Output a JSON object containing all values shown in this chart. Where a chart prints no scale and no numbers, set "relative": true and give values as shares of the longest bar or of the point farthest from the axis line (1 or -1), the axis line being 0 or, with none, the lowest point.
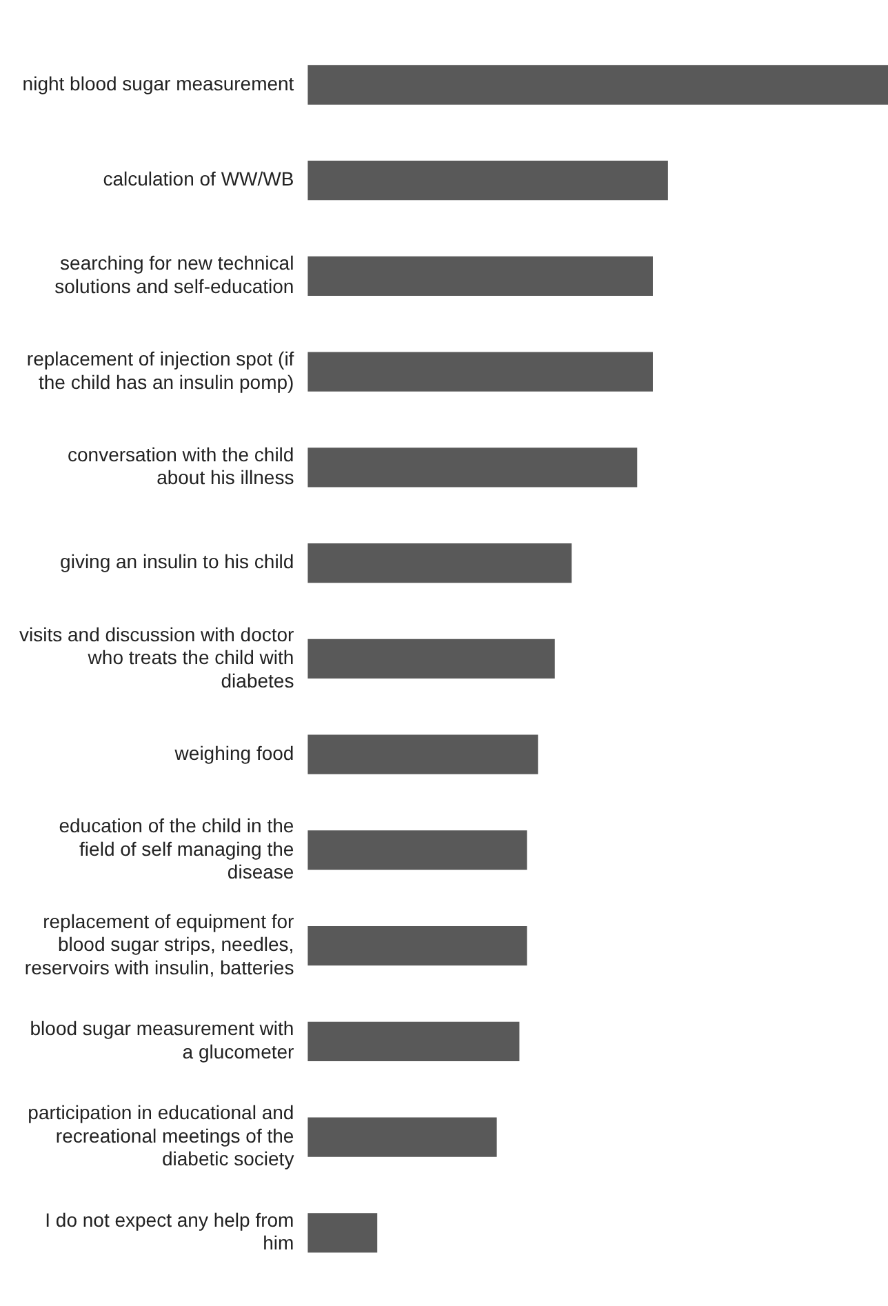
{
  "chart_data": {
    "type": "bar",
    "orientation": "horizontal",
    "relative": true,
    "categories": [
      "night blood sugar measurement",
      "calculation of WW/WB",
      "searching for new technical solutions and self-education",
      "replacement of injection spot (if the child has an insulin pomp)",
      "conversation with the child about his illness",
      "giving an insulin to his child",
      "visits and discussion with doctor who treats the child with diabetes",
      "weighing food",
      "education of the child in the field of self managing the disease",
      "replacement of equipment for blood sugar strips, needles, reservoirs with insulin, batteries",
      "blood sugar measurement with a glucometer",
      "participation in educational and recreational meetings of the diabetic society",
      "I do not expect any help from him"
    ],
    "color": "#595959",
    "values": [
      1,
      0.62,
      0.594,
      0.594,
      0.567,
      0.454,
      0.425,
      0.396,
      0.377,
      0.377,
      0.364,
      0.325,
      0.119
    ]
  }
}
